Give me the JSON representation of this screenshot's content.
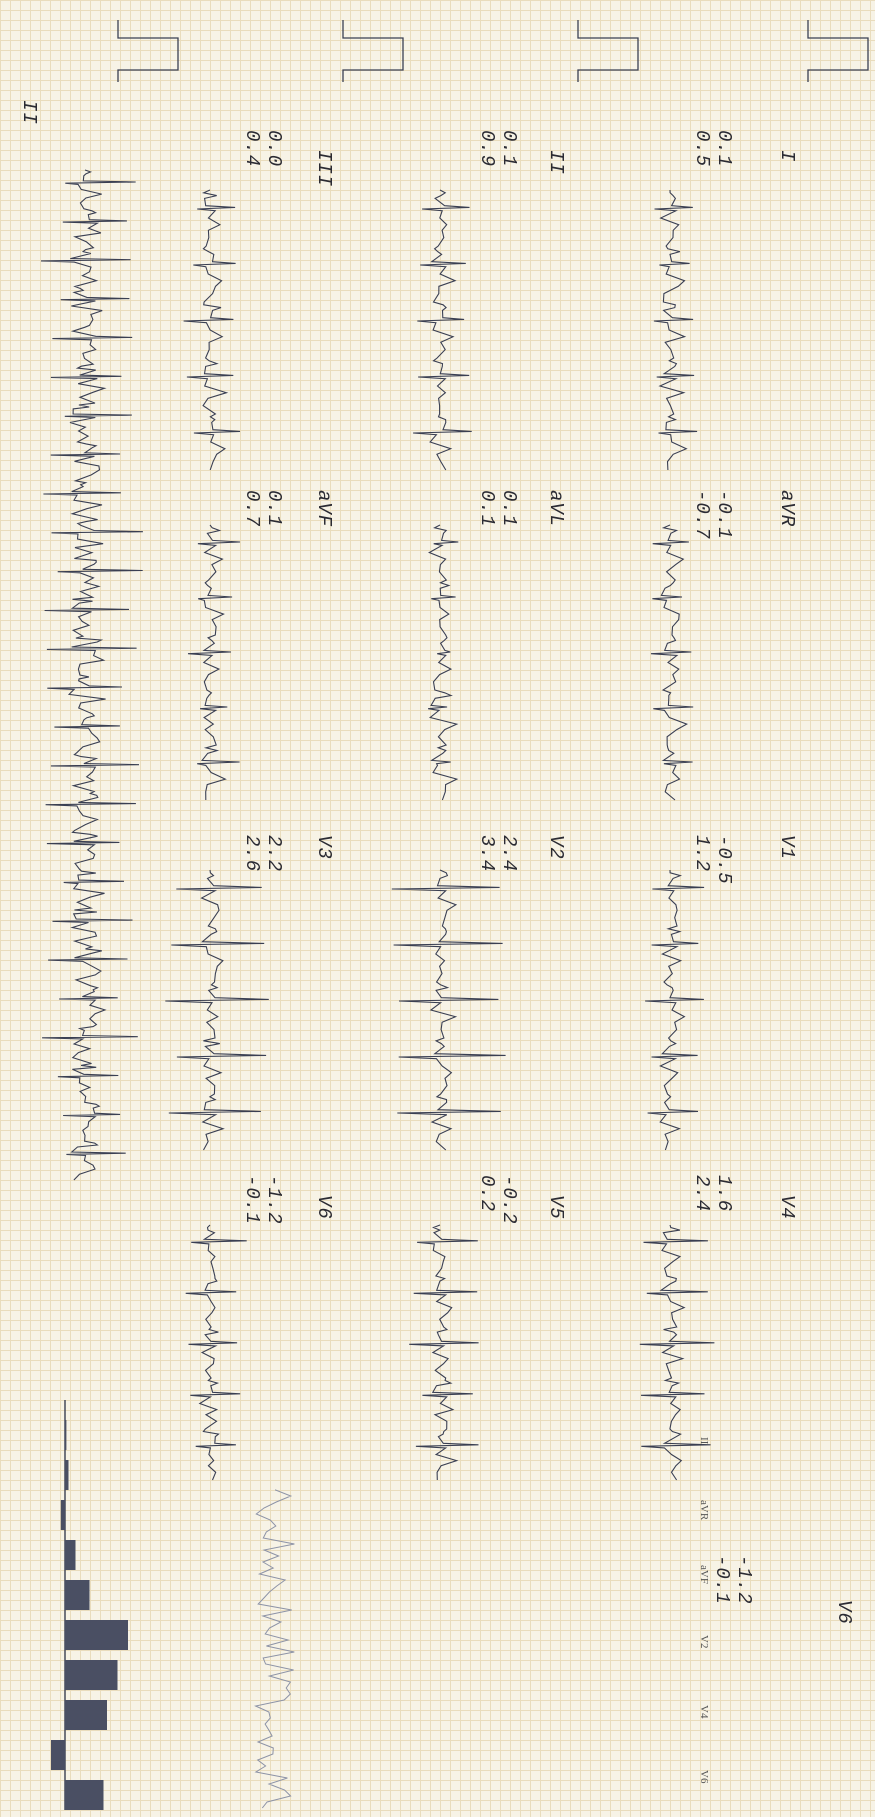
{
  "rows": [
    {
      "leads": [
        {
          "name": "I",
          "st_values": [
            "0.1",
            "0.5"
          ]
        },
        {
          "name": "aVR",
          "st_values": [
            "-0.1",
            "-0.7"
          ]
        },
        {
          "name": "V1",
          "st_values": [
            "-0.5",
            "1.2"
          ]
        },
        {
          "name": "V4",
          "st_values": [
            "1.6",
            "2.4"
          ]
        }
      ]
    },
    {
      "leads": [
        {
          "name": "II",
          "st_values": [
            "0.1",
            "0.9"
          ]
        },
        {
          "name": "aVL",
          "st_values": [
            "0.1",
            "0.1"
          ]
        },
        {
          "name": "V2",
          "st_values": [
            "2.4",
            "3.4"
          ]
        },
        {
          "name": "V5",
          "st_values": [
            "-0.2",
            "0.2"
          ]
        }
      ]
    },
    {
      "leads": [
        {
          "name": "III",
          "st_values": [
            "0.0",
            "0.4"
          ]
        },
        {
          "name": "aVF",
          "st_values": [
            "0.1",
            "0.7"
          ]
        },
        {
          "name": "V3",
          "st_values": [
            "2.2",
            "2.6"
          ]
        },
        {
          "name": "V6",
          "st_values": [
            "-1.2",
            "-0.1"
          ]
        }
      ]
    },
    {
      "leads": [
        {
          "name": "II",
          "st_values": []
        }
      ]
    }
  ],
  "magnified_lead": {
    "name": "V6",
    "st_values": [
      "-1.2",
      "-0.1"
    ]
  },
  "st_profile": {
    "labels": [
      "II",
      "aVR",
      "aVF",
      "V2",
      "V4",
      "V6"
    ],
    "bars": [
      0.02,
      0.05,
      -0.06,
      0.15,
      0.35,
      0.9,
      0.75,
      0.6,
      -0.2,
      0.55
    ]
  },
  "colors": {
    "trace": "#3a3f52",
    "text": "#2b2b33",
    "bars": "#4a4f63"
  }
}
